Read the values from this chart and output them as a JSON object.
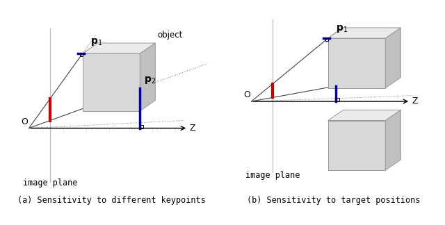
{
  "bg_color": "#ffffff",
  "fig_width": 6.4,
  "fig_height": 3.24,
  "caption_a": "(a) Sensitivity to different keypoints",
  "caption_b": "(b) Sensitivity to target positions",
  "label_object": "object",
  "label_O": "O",
  "label_Z": "Z",
  "label_p1": "$\\mathbf{p}_1$",
  "label_p2": "$\\mathbf{p}_2$",
  "label_image_plane": "image plane",
  "box_face_color": "#d8d8d8",
  "box_top_color": "#ebebeb",
  "box_right_color": "#c0c0c0",
  "box_edge_color": "#999999",
  "ray_color": "#777777",
  "red_color": "#cc0000",
  "blue_color": "#0000bb",
  "axis_color": "#000000",
  "text_color": "#000000"
}
